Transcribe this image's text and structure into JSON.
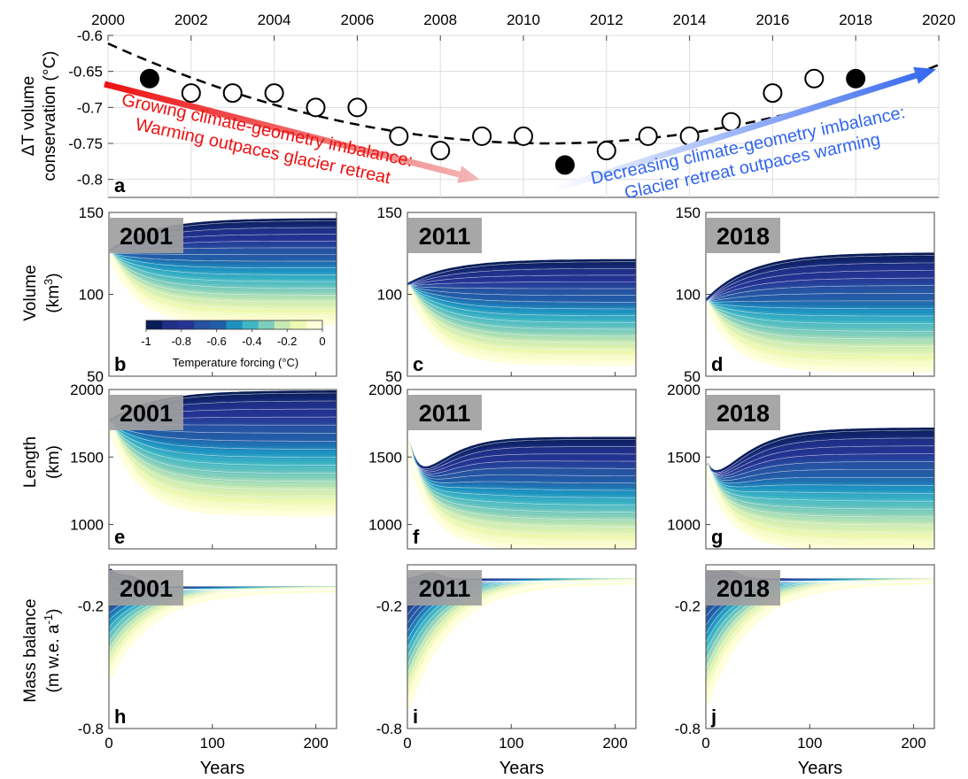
{
  "chart_data": [
    {
      "id": "a",
      "type": "scatter",
      "panel_letter": "a",
      "ylabel_line1": "ΔT volume",
      "ylabel_line2": "conservation (°C)",
      "xlim": [
        2000,
        2020
      ],
      "ylim": [
        -0.825,
        -0.6
      ],
      "x_ticks": [
        "2000",
        "2002",
        "2004",
        "2006",
        "2008",
        "2010",
        "2012",
        "2014",
        "2016",
        "2018",
        "2020"
      ],
      "y_ticks": [
        "-0.6",
        "-0.65",
        "-0.7",
        "-0.75",
        "-0.8"
      ],
      "open_points": [
        {
          "x": 2002,
          "y": -0.68
        },
        {
          "x": 2003,
          "y": -0.68
        },
        {
          "x": 2004,
          "y": -0.68
        },
        {
          "x": 2005,
          "y": -0.7
        },
        {
          "x": 2006,
          "y": -0.7
        },
        {
          "x": 2007,
          "y": -0.74
        },
        {
          "x": 2008,
          "y": -0.76
        },
        {
          "x": 2009,
          "y": -0.74
        },
        {
          "x": 2010,
          "y": -0.74
        },
        {
          "x": 2012,
          "y": -0.76
        },
        {
          "x": 2013,
          "y": -0.74
        },
        {
          "x": 2014,
          "y": -0.74
        },
        {
          "x": 2015,
          "y": -0.72
        },
        {
          "x": 2016,
          "y": -0.68
        },
        {
          "x": 2017,
          "y": -0.66
        }
      ],
      "filled_points": [
        {
          "x": 2001,
          "y": -0.66
        },
        {
          "x": 2011,
          "y": -0.78
        },
        {
          "x": 2018,
          "y": -0.66
        }
      ],
      "fit_curve": {
        "vertex_x": 2010.6,
        "vertex_y": -0.75,
        "a": 0.001235
      },
      "annotation_left_line1": "Growing climate-geometry imbalance:",
      "annotation_left_line2": "Warming outpaces glacier retreat",
      "annotation_right_line1": "Decreasing climate-geometry imbalance:",
      "annotation_right_line2": "Glacier retreat outpaces warming",
      "colors": {
        "left_arrow": "#ee1111",
        "right_arrow": "#3366ee"
      }
    },
    {
      "id": "b",
      "type": "line",
      "row": "volume",
      "panel_letter": "b",
      "year_label": "2001",
      "start": 125,
      "upper": 145,
      "lower": 83,
      "hump": 0
    },
    {
      "id": "c",
      "type": "line",
      "row": "volume",
      "panel_letter": "c",
      "year_label": "2011",
      "start": 105,
      "upper": 120,
      "lower": 58,
      "hump": 0
    },
    {
      "id": "d",
      "type": "line",
      "row": "volume",
      "panel_letter": "d",
      "year_label": "2018",
      "start": 95,
      "upper": 124,
      "lower": 54,
      "hump": 0
    },
    {
      "id": "e",
      "type": "line",
      "row": "length",
      "panel_letter": "e",
      "year_label": "2001",
      "start": 1750,
      "upper": 1975,
      "lower": 1080,
      "hump": 0
    },
    {
      "id": "f",
      "type": "line",
      "row": "length",
      "panel_letter": "f",
      "year_label": "2011",
      "start": 1600,
      "upper": 1630,
      "lower": 820,
      "hump": -200
    },
    {
      "id": "g",
      "type": "line",
      "row": "length",
      "panel_letter": "g",
      "year_label": "2018",
      "start": 1440,
      "upper": 1700,
      "lower": 820,
      "hump": -130
    },
    {
      "id": "h",
      "type": "line",
      "row": "mass",
      "panel_letter": "h",
      "year_label": "2001",
      "start_top": -0.03,
      "start_bottom": -0.55,
      "end": -0.12
    },
    {
      "id": "i",
      "type": "line",
      "row": "mass",
      "panel_letter": "i",
      "year_label": "2011",
      "start_top": -0.08,
      "start_bottom": -0.7,
      "end": -0.08
    },
    {
      "id": "j",
      "type": "line",
      "row": "mass",
      "panel_letter": "j",
      "year_label": "2018",
      "start_top": -0.04,
      "start_bottom": -0.68,
      "end": -0.08
    }
  ],
  "rows": {
    "volume": {
      "ylabel_line1": "Volume",
      "ylabel_line2": "(km",
      "ylabel_sup": "3",
      "ylabel_end": ")",
      "ylim": [
        50,
        150
      ],
      "y_ticks": [
        "50",
        "100",
        "150"
      ],
      "y_tick_values": [
        50,
        100,
        150
      ]
    },
    "length": {
      "ylabel_line1": "Length",
      "ylabel_line2": "(km)",
      "ylim": [
        820,
        2000
      ],
      "y_ticks": [
        "1000",
        "1500",
        "2000"
      ],
      "y_tick_values": [
        1000,
        1500,
        2000
      ]
    },
    "mass": {
      "ylabel_line1": "Mass balance",
      "ylabel_line2": "(m w.e. a",
      "ylabel_sup": "-1",
      "ylabel_end": ")",
      "ylim": [
        -0.8,
        0.0
      ],
      "y_ticks": [
        "-0.2",
        "-0.8"
      ],
      "y_tick_values": [
        -0.2,
        -0.8
      ]
    }
  },
  "x_axis": {
    "xlim": [
      0,
      220
    ],
    "x_ticks": [
      "0",
      "100",
      "200"
    ],
    "x_tick_values": [
      0,
      100,
      200
    ],
    "xlabel": "Years"
  },
  "colorbar": {
    "label": "Temperature forcing (°C)",
    "ticks": [
      "-1",
      "-0.8",
      "-0.6",
      "-0.4",
      "-0.2",
      "0"
    ],
    "colors": [
      "#081d58",
      "#1f2f88",
      "#253494",
      "#2552a1",
      "#225ea8",
      "#1d91c0",
      "#41b6c4",
      "#7fcdbb",
      "#c7e9b4",
      "#edf8b1",
      "#ffffd9"
    ]
  }
}
